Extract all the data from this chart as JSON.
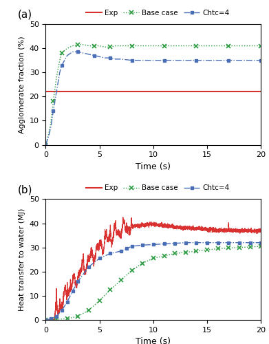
{
  "panel_a": {
    "title_label": "(a)",
    "ylabel": "Agglomerate fraction (%)",
    "xlabel": "Time (s)",
    "xlim": [
      0,
      20
    ],
    "ylim": [
      0,
      50
    ],
    "xticks": [
      0,
      5,
      10,
      15,
      20
    ],
    "yticks": [
      0,
      10,
      20,
      30,
      40,
      50
    ],
    "exp_y": 22.0,
    "base_case_t": [
      0.0,
      0.3,
      0.5,
      0.7,
      1.0,
      1.3,
      1.5,
      2.0,
      2.5,
      3.0,
      3.5,
      4.0,
      4.5,
      5.0,
      5.5,
      6.0,
      6.5,
      7.0,
      8.0,
      9.0,
      10.0,
      11.0,
      12.0,
      13.0,
      14.0,
      15.0,
      16.0,
      17.0,
      18.0,
      19.0,
      20.0
    ],
    "base_case_y": [
      0.0,
      5.0,
      10.0,
      18.0,
      28.0,
      35.0,
      38.0,
      40.0,
      41.0,
      41.5,
      41.5,
      41.0,
      41.0,
      41.0,
      40.5,
      40.5,
      41.0,
      41.0,
      41.0,
      41.0,
      41.0,
      41.0,
      41.0,
      41.0,
      41.0,
      41.0,
      41.0,
      41.0,
      41.0,
      41.0,
      41.0
    ],
    "chtc4_t": [
      0.0,
      0.3,
      0.5,
      0.7,
      1.0,
      1.3,
      1.5,
      2.0,
      2.5,
      3.0,
      3.5,
      4.0,
      4.5,
      5.0,
      5.5,
      6.0,
      6.5,
      7.0,
      8.0,
      9.0,
      10.0,
      11.0,
      12.0,
      13.0,
      14.0,
      15.0,
      16.0,
      17.0,
      18.0,
      19.0,
      20.0
    ],
    "chtc4_y": [
      0.0,
      4.0,
      8.0,
      14.0,
      22.0,
      30.0,
      33.0,
      37.0,
      38.5,
      38.5,
      38.0,
      37.5,
      37.0,
      36.5,
      36.0,
      36.0,
      35.5,
      35.5,
      35.0,
      35.0,
      35.0,
      35.0,
      35.0,
      35.0,
      35.0,
      35.0,
      35.0,
      35.0,
      35.0,
      35.0,
      35.0
    ],
    "base_marker_every": 3,
    "chtc4_marker_every": 3,
    "colors": {
      "exp": "#d93030",
      "base_case": "#2a9a40",
      "chtc4": "#4a6eb5"
    }
  },
  "panel_b": {
    "title_label": "(b)",
    "ylabel": "Heat transfer to water (MJ)",
    "xlabel": "Time (s)",
    "xlim": [
      0,
      20
    ],
    "ylim": [
      0,
      50
    ],
    "xticks": [
      0,
      5,
      10,
      15,
      20
    ],
    "yticks": [
      0,
      10,
      20,
      30,
      40,
      50
    ],
    "base_case_t": [
      0.0,
      1.0,
      2.0,
      3.0,
      4.0,
      5.0,
      6.0,
      7.0,
      8.0,
      9.0,
      10.0,
      11.0,
      12.0,
      13.0,
      14.0,
      15.0,
      16.0,
      17.0,
      18.0,
      19.0,
      20.0
    ],
    "base_case_y": [
      0.0,
      0.2,
      0.5,
      1.5,
      4.0,
      8.0,
      12.5,
      16.5,
      20.5,
      23.5,
      25.5,
      26.5,
      27.5,
      28.0,
      28.5,
      29.0,
      29.5,
      29.8,
      30.0,
      30.2,
      30.5
    ],
    "chtc4_t": [
      0.0,
      0.5,
      1.0,
      1.5,
      2.0,
      2.5,
      3.0,
      4.0,
      5.0,
      6.0,
      7.0,
      7.5,
      8.0,
      9.0,
      10.0,
      11.0,
      12.0,
      13.0,
      14.0,
      15.0,
      16.0,
      17.0,
      18.0,
      19.0,
      20.0
    ],
    "chtc4_y": [
      0.0,
      0.5,
      1.5,
      4.0,
      7.5,
      12.0,
      16.0,
      22.0,
      25.5,
      27.5,
      28.5,
      29.5,
      30.5,
      31.0,
      31.2,
      31.5,
      31.7,
      32.0,
      32.0,
      32.0,
      32.0,
      32.0,
      32.0,
      32.0,
      32.0
    ],
    "colors": {
      "exp": "#d93030",
      "base_case": "#2a9a40",
      "chtc4": "#4a6eb5"
    }
  },
  "legend": {
    "exp_label": "Exp",
    "base_label": "Base case",
    "chtc_label": "Chtc=4"
  }
}
